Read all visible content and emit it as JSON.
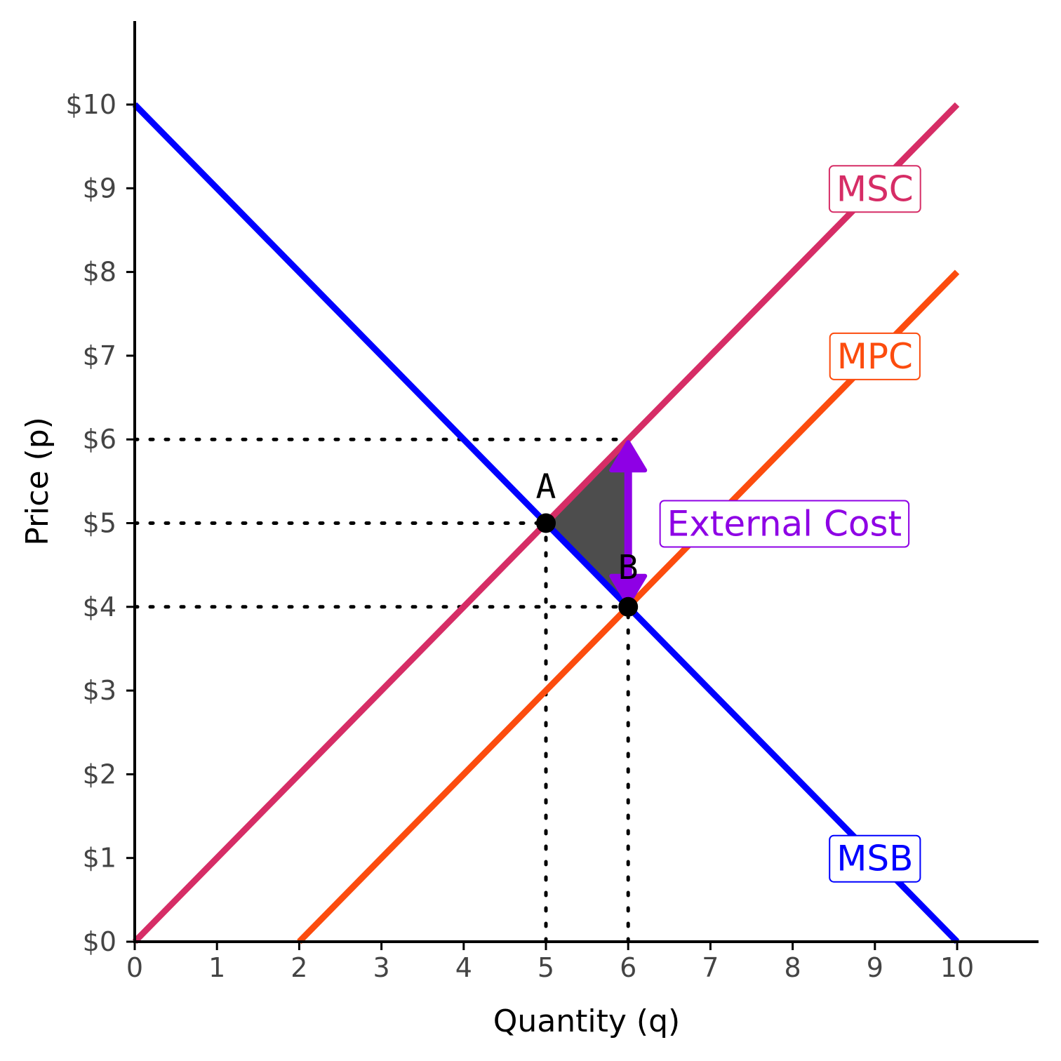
{
  "chart_data": {
    "type": "line",
    "xlabel": "Quantity (q)",
    "ylabel": "Price (p)",
    "xlim": [
      0,
      11
    ],
    "ylim": [
      0,
      11
    ],
    "x_ticks": [
      0,
      1,
      2,
      3,
      4,
      5,
      6,
      7,
      8,
      9,
      10
    ],
    "x_tick_labels": [
      "0",
      "1",
      "2",
      "3",
      "4",
      "5",
      "6",
      "7",
      "8",
      "9",
      "10"
    ],
    "y_ticks": [
      0,
      1,
      2,
      3,
      4,
      5,
      6,
      7,
      8,
      9,
      10
    ],
    "y_tick_labels": [
      "$0",
      "$1",
      "$2",
      "$3",
      "$4",
      "$5",
      "$6",
      "$7",
      "$8",
      "$9",
      "$10"
    ],
    "series": [
      {
        "name": "MSC",
        "label": "MSC",
        "color": "#d62d66",
        "x": [
          0,
          10
        ],
        "y": [
          0,
          10
        ],
        "label_at": [
          9,
          9
        ]
      },
      {
        "name": "MPC",
        "label": "MPC",
        "color": "#fc4c0e",
        "x": [
          2,
          10
        ],
        "y": [
          0,
          8
        ],
        "label_at": [
          9,
          7
        ]
      },
      {
        "name": "MSB",
        "label": "MSB",
        "color": "#0000ff",
        "x": [
          0,
          10
        ],
        "y": [
          10,
          0
        ],
        "label_at": [
          9,
          1
        ]
      }
    ],
    "points": [
      {
        "name": "A",
        "label": "A",
        "x": 5,
        "y": 5
      },
      {
        "name": "B",
        "label": "B",
        "x": 6,
        "y": 4
      }
    ],
    "guides": [
      {
        "from": [
          0,
          6
        ],
        "to": [
          6,
          6
        ]
      },
      {
        "from": [
          0,
          5
        ],
        "to": [
          5,
          5
        ]
      },
      {
        "from": [
          0,
          4
        ],
        "to": [
          6,
          4
        ]
      },
      {
        "from": [
          5,
          0
        ],
        "to": [
          5,
          5
        ]
      },
      {
        "from": [
          6,
          0
        ],
        "to": [
          6,
          4
        ]
      }
    ],
    "deadweight_loss": {
      "vertices": [
        [
          5,
          5
        ],
        [
          6,
          6
        ],
        [
          6,
          4
        ]
      ],
      "color": "#4d4d4d"
    },
    "external_cost": {
      "label": "External Cost",
      "color": "#8e00e5",
      "x": 6,
      "from_y": 4,
      "to_y": 6,
      "label_at": [
        7.9,
        5
      ]
    }
  }
}
